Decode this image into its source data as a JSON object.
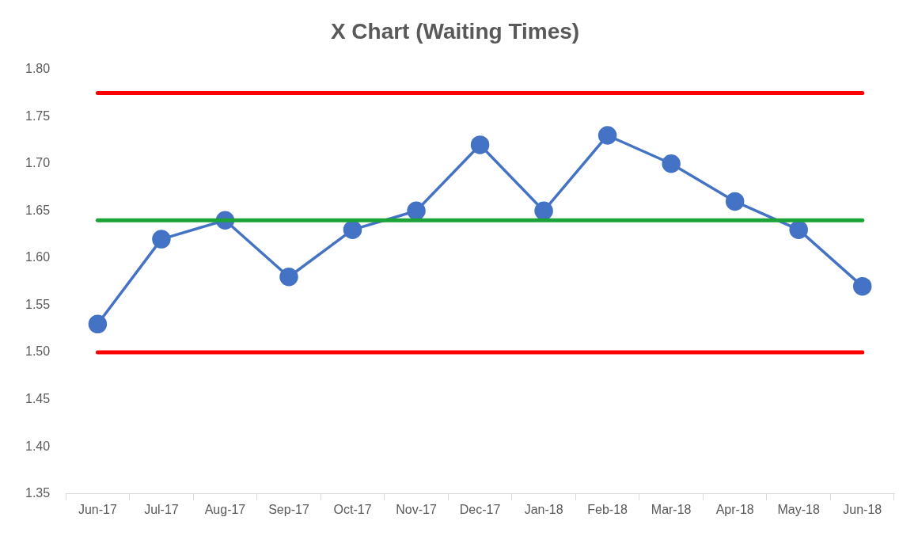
{
  "chart_data": {
    "type": "line",
    "title": "X Chart (Waiting Times)",
    "categories": [
      "Jun-17",
      "Jul-17",
      "Aug-17",
      "Sep-17",
      "Oct-17",
      "Nov-17",
      "Dec-17",
      "Jan-18",
      "Feb-18",
      "Mar-18",
      "Apr-18",
      "May-18",
      "Jun-18"
    ],
    "series": [
      {
        "color": "#4472c4",
        "values": [
          1.53,
          1.62,
          1.64,
          1.58,
          1.63,
          1.65,
          1.72,
          1.65,
          1.73,
          1.7,
          1.66,
          1.63,
          1.57
        ]
      }
    ],
    "ylim": [
      1.35,
      1.8
    ],
    "yticks": [
      {
        "value": 1.35,
        "label": "1.35"
      },
      {
        "value": 1.4,
        "label": "1.40"
      },
      {
        "value": 1.45,
        "label": "1.45"
      },
      {
        "value": 1.5,
        "label": "1.50"
      },
      {
        "value": 1.55,
        "label": "1.55"
      },
      {
        "value": 1.6,
        "label": "1.60"
      },
      {
        "value": 1.65,
        "label": "1.65"
      },
      {
        "value": 1.7,
        "label": "1.70"
      },
      {
        "value": 1.75,
        "label": "1.75"
      },
      {
        "value": 1.8,
        "label": "1.80"
      }
    ],
    "ref_lines": [
      {
        "axis": "y",
        "value": 1.775,
        "color": "#ff0000"
      },
      {
        "axis": "y",
        "value": 1.64,
        "color": "#1aa336"
      },
      {
        "axis": "y",
        "value": 1.5,
        "color": "#ff0000"
      }
    ],
    "grid": false,
    "legend": false,
    "marker": "circle",
    "line_style": "solid"
  }
}
